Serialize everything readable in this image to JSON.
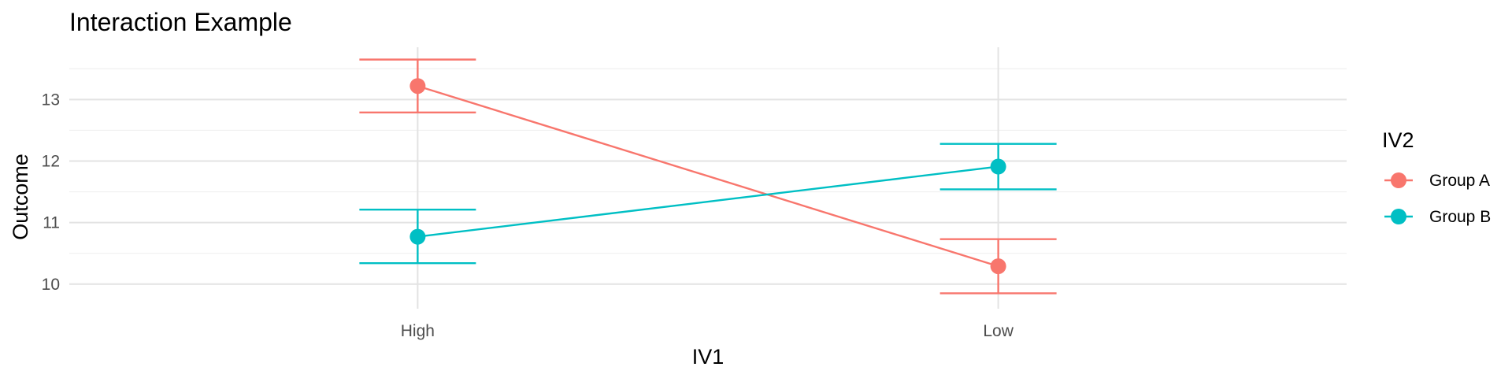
{
  "chart_data": {
    "type": "line",
    "title": "Interaction Example",
    "xlabel": "IV1",
    "ylabel": "Outcome",
    "categories": [
      "High",
      "Low"
    ],
    "ylim": [
      9.6,
      13.85
    ],
    "y_ticks": [
      10,
      11,
      12,
      13
    ],
    "grid": true,
    "error_bars": true,
    "legend": {
      "title": "IV2",
      "position": "right"
    },
    "series": [
      {
        "name": "Group A",
        "color": "#F8766D",
        "values": [
          13.22,
          10.29
        ],
        "lower": [
          12.79,
          9.85
        ],
        "upper": [
          13.65,
          10.73
        ]
      },
      {
        "name": "Group B",
        "color": "#00BFC4",
        "values": [
          10.77,
          11.91
        ],
        "lower": [
          10.34,
          11.54
        ],
        "upper": [
          11.21,
          12.28
        ]
      }
    ]
  }
}
